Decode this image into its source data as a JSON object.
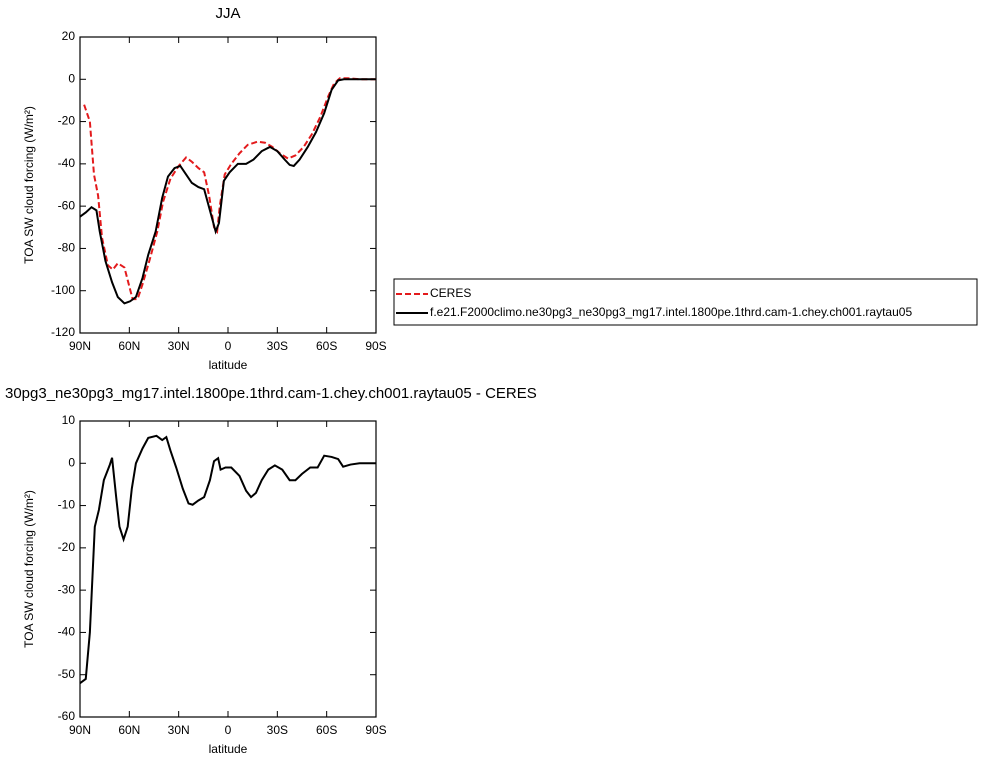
{
  "chart_data": [
    {
      "type": "line",
      "title": "JJA",
      "xlabel": "latitude",
      "ylabel": "TOA SW cloud forcing (W/m²)",
      "xlim": [
        90,
        -90
      ],
      "ylim": [
        -120,
        20
      ],
      "xticks": [
        {
          "value": 90,
          "label": "90N"
        },
        {
          "value": 60,
          "label": "60N"
        },
        {
          "value": 30,
          "label": "30N"
        },
        0,
        {
          "value": -30,
          "label": "30S"
        },
        {
          "value": -60,
          "label": "60S"
        },
        {
          "value": -90,
          "label": "90S"
        }
      ],
      "yticks": [
        20,
        0,
        -20,
        -40,
        -60,
        -80,
        -100,
        -120
      ],
      "legend": "right",
      "series": [
        {
          "name": "CERES",
          "color": "#e31a1c",
          "dashed": true,
          "x": [
            87.5,
            84,
            81.5,
            79,
            76.6,
            73,
            70,
            67,
            63,
            61,
            58,
            55,
            52,
            47.5,
            43,
            39.5,
            35,
            30,
            25.5,
            22,
            18,
            14.5,
            11.5,
            8.5,
            6.6,
            5,
            2,
            -2,
            -7,
            -12,
            -18,
            -22.5,
            -27,
            -31.5,
            -36.5,
            -41,
            -46,
            -51,
            -56,
            -61,
            -64.5,
            -68,
            -73,
            -80,
            -90
          ],
          "values": [
            -12,
            -20,
            -45,
            -55,
            -75,
            -88,
            -90,
            -87,
            -89,
            -95,
            -104,
            -104,
            -97,
            -85,
            -72,
            -58,
            -47,
            -41,
            -37,
            -39,
            -42,
            -44,
            -55,
            -70,
            -72,
            -60,
            -45,
            -40,
            -35,
            -31,
            -29.5,
            -30,
            -32,
            -35,
            -37.5,
            -36,
            -32,
            -26,
            -18,
            -8,
            -2,
            0.5,
            0.5,
            0,
            0
          ]
        },
        {
          "name": "f.e21.F2000climo.ne30pg3_ne30pg3_mg17.intel.1800pe.1thrd.cam-1.chey.ch001.raytau05",
          "color": "#000000",
          "dashed": false,
          "x": [
            90,
            86.5,
            83,
            80,
            78,
            74.5,
            70.5,
            67,
            63,
            59.5,
            56,
            52,
            48.5,
            44,
            40,
            36.5,
            32.5,
            29,
            25.5,
            22,
            18,
            14.5,
            11,
            7.5,
            5.5,
            2.5,
            -1,
            -6,
            -11,
            -15.5,
            -20.5,
            -25.5,
            -30,
            -34.5,
            -37.5,
            -40,
            -43.5,
            -48.5,
            -53.5,
            -58.5,
            -63,
            -67,
            -70.5,
            -80,
            -90
          ],
          "values": [
            -65,
            -63,
            -60.5,
            -62,
            -72,
            -86,
            -96,
            -103,
            -106,
            -105,
            -103,
            -94,
            -83,
            -72,
            -56,
            -46,
            -42,
            -41,
            -45,
            -49,
            -51,
            -52,
            -62,
            -72,
            -68,
            -48,
            -44,
            -40,
            -40,
            -38,
            -34,
            -32,
            -34,
            -38,
            -40.5,
            -41,
            -38,
            -32,
            -25,
            -16,
            -5,
            -0.5,
            0,
            0,
            0
          ]
        }
      ]
    },
    {
      "type": "line",
      "title": "30pg3_ne30pg3_mg17.intel.1800pe.1thrd.cam-1.chey.ch001.raytau05 - CERES",
      "xlabel": "latitude",
      "ylabel": "TOA SW cloud forcing (W/m²)",
      "xlim": [
        90,
        -90
      ],
      "ylim": [
        -60,
        10
      ],
      "xticks": [
        {
          "value": 90,
          "label": "90N"
        },
        {
          "value": 60,
          "label": "60N"
        },
        {
          "value": 30,
          "label": "30N"
        },
        0,
        {
          "value": -30,
          "label": "30S"
        },
        {
          "value": -60,
          "label": "60S"
        },
        {
          "value": -90,
          "label": "90S"
        }
      ],
      "yticks": [
        10,
        0,
        -10,
        -20,
        -30,
        -40,
        -50,
        -60
      ],
      "series": [
        {
          "color": "#000000",
          "dashed": false,
          "x": [
            90,
            86.5,
            84,
            81,
            78.5,
            75.5,
            72,
            70.5,
            68,
            66,
            63.5,
            61,
            58.5,
            56,
            52,
            48.5,
            43.5,
            40,
            37.5,
            35,
            31.5,
            27.5,
            24,
            21.5,
            18,
            14.5,
            11,
            8.5,
            6,
            4.5,
            1.5,
            -2,
            -7,
            -11,
            -14,
            -17,
            -20.5,
            -24.5,
            -28.5,
            -33,
            -37.5,
            -41,
            -45,
            -50,
            -54.5,
            -58.5,
            -63,
            -67,
            -70,
            -74.5,
            -80,
            -90
          ],
          "values": [
            -52,
            -51,
            -40,
            -15,
            -11,
            -4,
            -0.5,
            1.3,
            -8,
            -15,
            -18,
            -15,
            -6,
            0,
            3.5,
            6,
            6.5,
            5.5,
            6.2,
            3,
            -1,
            -6,
            -9.5,
            -9.8,
            -8.8,
            -8,
            -4,
            0.5,
            1.2,
            -1.5,
            -1,
            -1,
            -3,
            -6.5,
            -8,
            -7,
            -4,
            -1.5,
            -0.5,
            -1.5,
            -4,
            -4,
            -2.5,
            -1,
            -1,
            1.8,
            1.5,
            1,
            -0.8,
            -0.3,
            0,
            0
          ]
        }
      ]
    }
  ]
}
